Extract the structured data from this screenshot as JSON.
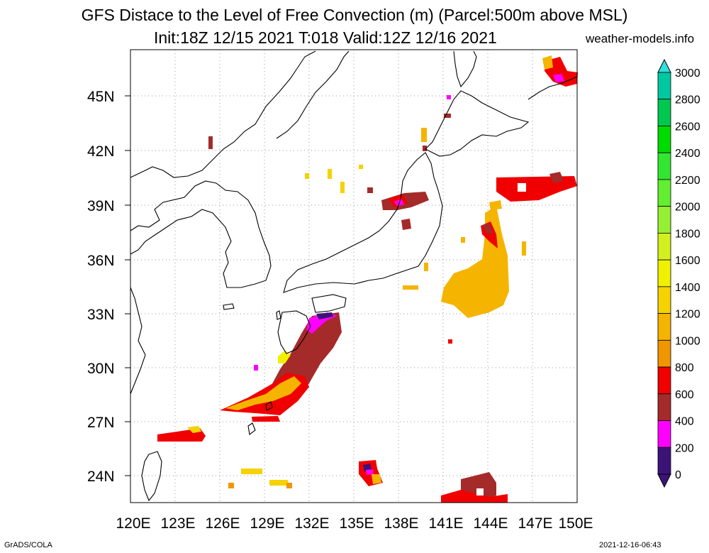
{
  "title": {
    "line1": "GFS Distace to the Level of Free Convection (m) (Parcel:500m above MSL)",
    "line2": "Init:18Z 12/15 2021 T:018 Valid:12Z 12/16 2021",
    "site": "weather-models.info"
  },
  "footer": {
    "left": "GrADS/COLA",
    "right": "2021-12-16-06:43"
  },
  "map": {
    "lon_range": [
      120,
      150
    ],
    "lat_range": [
      22.5,
      47.5
    ],
    "lat_ticks": [
      "45N",
      "42N",
      "39N",
      "36N",
      "33N",
      "30N",
      "27N",
      "24N"
    ],
    "lon_ticks": [
      "120E",
      "123E",
      "126E",
      "129E",
      "132E",
      "135E",
      "138E",
      "141E",
      "144E",
      "147E",
      "150E"
    ]
  },
  "colorbar": {
    "labels": [
      "3000",
      "2800",
      "2600",
      "2400",
      "2200",
      "2000",
      "1800",
      "1600",
      "1400",
      "1200",
      "1000",
      "800",
      "600",
      "400",
      "200",
      "0"
    ],
    "colors": [
      "#30e0e0",
      "#00c8a0",
      "#00c850",
      "#00dc00",
      "#32e632",
      "#64ee32",
      "#96f032",
      "#d2f01e",
      "#f0f000",
      "#f5d200",
      "#f5b400",
      "#f09600",
      "#f00000",
      "#a52a2a",
      "#ff00ff",
      "#3c1478"
    ]
  }
}
